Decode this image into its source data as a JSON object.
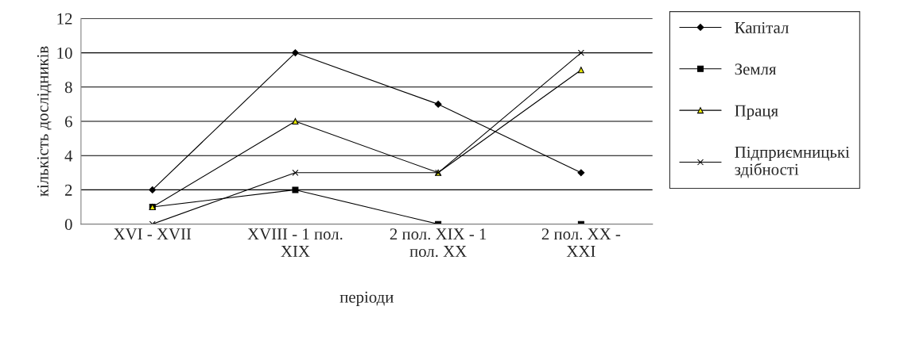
{
  "chart_data": {
    "type": "line",
    "xlabel": "періоди",
    "ylabel": "кількість дослідників",
    "categories": [
      "XVI - XVII",
      "XVIII - 1 пол.\nXIX",
      "2 пол. XIX - 1\nпол. XX",
      "2 пол. XX -\nXXI"
    ],
    "series": [
      {
        "name": "Капітал",
        "color": "#000000",
        "marker": "diamond",
        "values": [
          2,
          10,
          7,
          3
        ]
      },
      {
        "name": "Земля",
        "color": "#000000",
        "marker": "square",
        "values": [
          1,
          2,
          0,
          0
        ]
      },
      {
        "name": "Праця",
        "color": "#000000",
        "marker": "triangle",
        "values": [
          1,
          6,
          3,
          9
        ]
      },
      {
        "name": "Підприємницькі\nздібності",
        "color": "#000000",
        "marker": "cross",
        "values": [
          0,
          3,
          3,
          10
        ]
      }
    ],
    "ylim": [
      0,
      12
    ],
    "yticks": [
      0,
      2,
      4,
      6,
      8,
      10,
      12
    ],
    "grid": "y",
    "legend": "right",
    "line_style": "solid"
  }
}
